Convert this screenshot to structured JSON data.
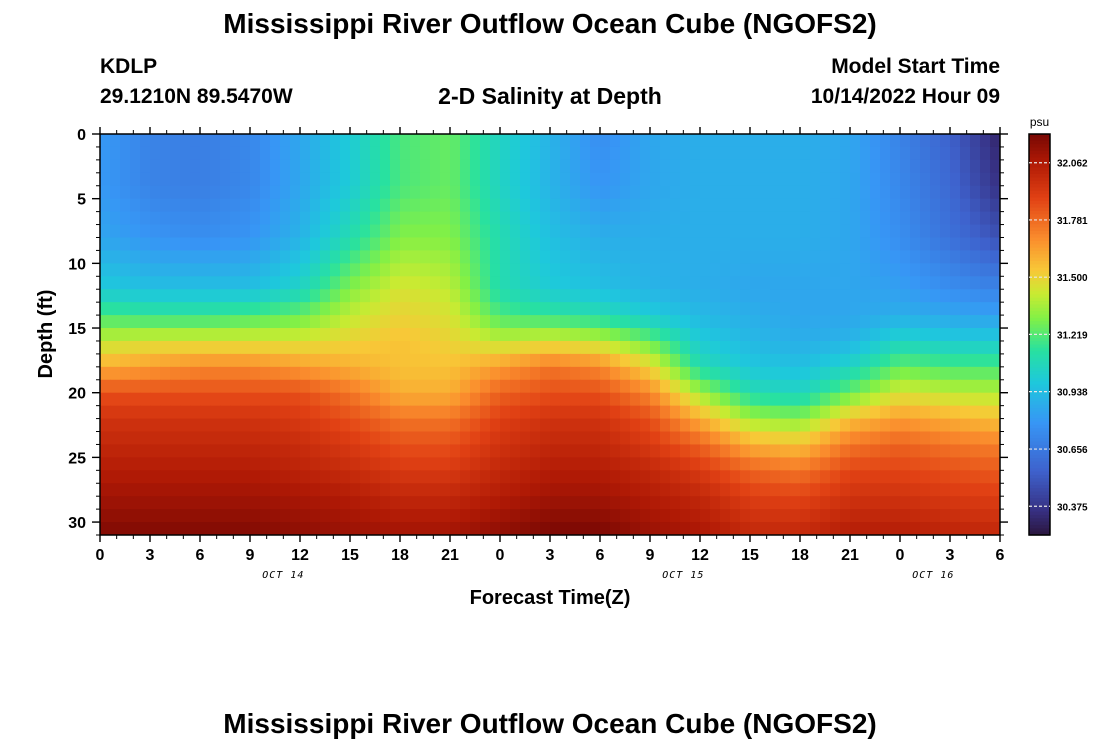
{
  "page": {
    "title": "Mississippi River Outflow Ocean Cube (NGOFS2)",
    "station": "KDLP",
    "coords": "29.1210N  89.5470W",
    "subtitle": "2-D Salinity at Depth",
    "model_label": "Model Start Time",
    "model_time": "10/14/2022 Hour 09",
    "second_title": "Mississippi River Outflow Ocean Cube (NGOFS2)"
  },
  "chart_data": {
    "type": "heatmap",
    "title": "2-D Salinity at Depth",
    "xlabel": "Forecast Time(Z)",
    "ylabel": "Depth (ft)",
    "x_ticks": [
      "0",
      "3",
      "6",
      "9",
      "12",
      "15",
      "18",
      "21",
      "0",
      "3",
      "6",
      "9",
      "12",
      "15",
      "18",
      "21",
      "0",
      "3",
      "6"
    ],
    "day_labels": [
      {
        "label": "OCT 14",
        "x_hour": 11
      },
      {
        "label": "OCT 15",
        "x_hour": 35
      },
      {
        "label": "OCT 16",
        "x_hour": 50
      }
    ],
    "x_range_hours": [
      0,
      54
    ],
    "y_ticks": [
      0,
      5,
      10,
      15,
      20,
      25,
      30
    ],
    "y_range_ft": [
      0,
      31
    ],
    "y_inverted": true,
    "colorbar": {
      "unit": "psu",
      "min": 30.234,
      "max": 32.203,
      "tick_labels": [
        "32.062",
        "31.781",
        "31.500",
        "31.219",
        "30.938",
        "30.656",
        "30.375"
      ],
      "tick_values": [
        32.062,
        31.781,
        31.5,
        31.219,
        30.938,
        30.656,
        30.375
      ]
    },
    "grid": {
      "hours": [
        0,
        3,
        6,
        9,
        12,
        15,
        18,
        21,
        24,
        27,
        30,
        33,
        36,
        39,
        42,
        45,
        48,
        51,
        54
      ],
      "depths_ft": [
        0,
        4,
        8,
        12,
        14,
        16,
        18,
        20,
        22,
        24,
        26,
        28,
        31
      ],
      "salinity_psu_rows": [
        [
          30.8,
          30.7,
          30.68,
          30.72,
          30.85,
          31.0,
          31.2,
          31.25,
          31.05,
          30.9,
          30.75,
          30.85,
          30.88,
          30.88,
          30.88,
          30.85,
          30.7,
          30.55,
          30.3
        ],
        [
          30.8,
          30.7,
          30.68,
          30.72,
          30.85,
          31.0,
          31.2,
          31.25,
          31.05,
          30.9,
          30.78,
          30.85,
          30.88,
          30.88,
          30.88,
          30.85,
          30.72,
          30.58,
          30.35
        ],
        [
          30.85,
          30.78,
          30.75,
          30.78,
          30.9,
          31.1,
          31.3,
          31.3,
          31.1,
          30.95,
          30.88,
          30.88,
          30.88,
          30.88,
          30.88,
          30.85,
          30.75,
          30.62,
          30.48
        ],
        [
          31.0,
          30.95,
          30.95,
          30.95,
          31.05,
          31.3,
          31.45,
          31.4,
          31.1,
          31.0,
          30.95,
          30.9,
          30.88,
          30.85,
          30.85,
          30.85,
          30.82,
          30.75,
          30.7
        ],
        [
          31.2,
          31.15,
          31.15,
          31.2,
          31.25,
          31.4,
          31.5,
          31.45,
          31.2,
          31.15,
          31.1,
          31.0,
          30.92,
          30.88,
          30.85,
          30.85,
          30.88,
          30.85,
          30.82
        ],
        [
          31.4,
          31.45,
          31.45,
          31.45,
          31.45,
          31.5,
          31.55,
          31.5,
          31.4,
          31.45,
          31.4,
          31.25,
          31.0,
          30.92,
          30.88,
          30.9,
          31.05,
          31.0,
          31.0
        ],
        [
          31.6,
          31.65,
          31.7,
          31.7,
          31.65,
          31.6,
          31.55,
          31.55,
          31.65,
          31.75,
          31.7,
          31.5,
          31.1,
          30.98,
          30.95,
          31.05,
          31.25,
          31.2,
          31.2
        ],
        [
          31.85,
          31.85,
          31.85,
          31.85,
          31.85,
          31.75,
          31.6,
          31.6,
          31.8,
          31.85,
          31.85,
          31.7,
          31.35,
          31.1,
          31.05,
          31.25,
          31.45,
          31.4,
          31.38
        ],
        [
          31.95,
          31.95,
          31.95,
          31.95,
          31.92,
          31.85,
          31.75,
          31.75,
          31.9,
          31.95,
          31.95,
          31.85,
          31.6,
          31.35,
          31.3,
          31.55,
          31.65,
          31.6,
          31.55
        ],
        [
          32.0,
          32.0,
          32.0,
          32.0,
          31.98,
          31.92,
          31.85,
          31.85,
          31.95,
          32.0,
          32.0,
          31.92,
          31.8,
          31.6,
          31.55,
          31.75,
          31.8,
          31.75,
          31.72
        ],
        [
          32.05,
          32.05,
          32.05,
          32.05,
          32.02,
          31.98,
          31.92,
          31.92,
          32.0,
          32.05,
          32.05,
          32.0,
          31.92,
          31.8,
          31.75,
          31.88,
          31.88,
          31.85,
          31.82
        ],
        [
          32.1,
          32.1,
          32.1,
          32.1,
          32.08,
          32.05,
          32.0,
          32.0,
          32.05,
          32.1,
          32.1,
          32.05,
          32.0,
          31.9,
          31.88,
          31.95,
          31.95,
          31.92,
          31.9
        ],
        [
          32.18,
          32.18,
          32.18,
          32.18,
          32.15,
          32.12,
          32.1,
          32.1,
          32.15,
          32.2,
          32.2,
          32.12,
          32.08,
          32.0,
          32.0,
          32.05,
          32.05,
          32.02,
          32.0
        ]
      ]
    }
  }
}
